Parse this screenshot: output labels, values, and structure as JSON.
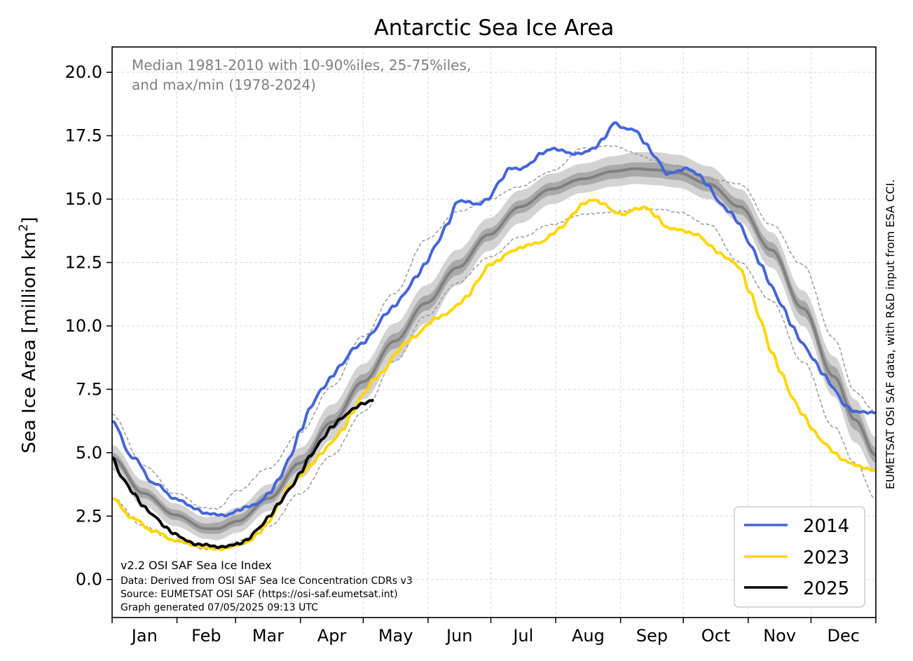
{
  "chart_data": {
    "type": "line",
    "title": "Antarctic Sea Ice Area",
    "ylabel_main": "Sea Ice Area [million km",
    "ylabel_sup": "2",
    "ylabel_close": "]",
    "xlabel": "",
    "xlim": [
      0,
      365
    ],
    "ylim": [
      -1.5,
      21.0
    ],
    "grid": true,
    "months": [
      "Jan",
      "Feb",
      "Mar",
      "Apr",
      "May",
      "Jun",
      "Jul",
      "Aug",
      "Sep",
      "Oct",
      "Nov",
      "Dec"
    ],
    "month_boundaries": [
      0,
      31,
      59,
      90,
      120,
      151,
      181,
      212,
      243,
      273,
      304,
      334,
      365
    ],
    "yticks": [
      0.0,
      2.5,
      5.0,
      7.5,
      10.0,
      12.5,
      15.0,
      17.5,
      20.0
    ],
    "ytick_labels": [
      "0.0",
      "2.5",
      "5.0",
      "7.5",
      "10.0",
      "12.5",
      "15.0",
      "17.5",
      "20.0"
    ],
    "climatology_note_line1": "Median 1981-2010 with 10-90%iles, 25-75%iles,",
    "climatology_note_line2": "and max/min (1978-2024)",
    "footer_lines": [
      "v2.2 OSI SAF Sea Ice Index",
      "Data: Derived from OSI SAF Sea Ice Concentration CDRs v3",
      "Source: EUMETSAT OSI SAF (https://osi-saf.eumetsat.int)",
      "Graph generated 07/05/2025 09:13 UTC"
    ],
    "side_credit": "EUMETSAT OSI SAF data, with R&D input from ESA CCI.",
    "legend_position": "lower-right",
    "legend": [
      {
        "label": "2014",
        "color": "#4466d8"
      },
      {
        "label": "2023",
        "color": "#ffd700"
      },
      {
        "label": "2025",
        "color": "#000000"
      }
    ],
    "climatology": {
      "x": [
        0,
        15,
        30,
        45,
        50,
        60,
        75,
        90,
        105,
        120,
        135,
        150,
        165,
        180,
        195,
        210,
        225,
        240,
        250,
        260,
        270,
        285,
        300,
        315,
        330,
        345,
        355,
        365
      ],
      "median": [
        4.8,
        3.4,
        2.55,
        2.0,
        2.0,
        2.3,
        3.2,
        4.6,
        6.2,
        7.8,
        9.4,
        10.9,
        12.3,
        13.6,
        14.7,
        15.4,
        15.8,
        16.1,
        16.2,
        16.15,
        16.05,
        15.6,
        14.7,
        13.0,
        10.7,
        8.0,
        6.3,
        4.9
      ],
      "p25": [
        4.6,
        3.2,
        2.35,
        1.8,
        1.8,
        2.1,
        3.0,
        4.3,
        5.9,
        7.5,
        9.1,
        10.6,
        12.0,
        13.35,
        14.45,
        15.15,
        15.55,
        15.8,
        15.9,
        15.85,
        15.75,
        15.3,
        14.4,
        12.7,
        10.4,
        7.6,
        5.9,
        4.6
      ],
      "p75": [
        5.0,
        3.6,
        2.75,
        2.2,
        2.25,
        2.55,
        3.45,
        4.9,
        6.5,
        8.1,
        9.7,
        11.2,
        12.6,
        13.85,
        14.95,
        15.65,
        16.05,
        16.35,
        16.45,
        16.45,
        16.35,
        15.9,
        15.0,
        13.3,
        11.0,
        8.4,
        6.7,
        5.2
      ],
      "p10": [
        4.3,
        2.9,
        2.1,
        1.6,
        1.55,
        1.85,
        2.7,
        4.0,
        5.5,
        7.1,
        8.6,
        10.1,
        11.6,
        12.95,
        14.05,
        14.8,
        15.25,
        15.5,
        15.6,
        15.55,
        15.45,
        15.0,
        14.1,
        12.3,
        10.0,
        7.2,
        5.4,
        4.2
      ],
      "p90": [
        5.3,
        3.9,
        3.0,
        2.45,
        2.5,
        2.85,
        3.75,
        5.2,
        6.9,
        8.5,
        10.1,
        11.6,
        13.0,
        14.25,
        15.35,
        16.0,
        16.4,
        16.7,
        16.85,
        16.85,
        16.75,
        16.3,
        15.4,
        13.7,
        11.4,
        8.8,
        7.1,
        5.6
      ],
      "max": [
        6.5,
        4.5,
        3.4,
        2.8,
        2.8,
        3.5,
        4.4,
        5.8,
        7.6,
        9.6,
        11.3,
        13.4,
        14.5,
        15.0,
        15.5,
        16.1,
        17.0,
        17.1,
        16.8,
        16.5,
        16.3,
        15.8,
        15.6,
        14.0,
        12.4,
        9.5,
        7.4,
        6.6
      ],
      "min": [
        3.2,
        2.1,
        1.5,
        1.2,
        1.2,
        1.5,
        2.1,
        3.4,
        4.9,
        6.6,
        8.6,
        10.4,
        11.7,
        12.7,
        13.5,
        14.0,
        14.4,
        14.5,
        14.6,
        14.6,
        14.5,
        14.0,
        12.5,
        11.0,
        8.6,
        6.0,
        4.6,
        3.2
      ]
    },
    "series": [
      {
        "name": "2014",
        "color": "#4466d8",
        "x": [
          0,
          10,
          20,
          30,
          40,
          45,
          50,
          55,
          60,
          65,
          70,
          75,
          80,
          85,
          90,
          95,
          100,
          105,
          110,
          115,
          120,
          125,
          130,
          135,
          140,
          145,
          150,
          155,
          160,
          165,
          170,
          175,
          180,
          185,
          190,
          195,
          200,
          205,
          210,
          215,
          220,
          225,
          230,
          235,
          240,
          245,
          250,
          255,
          260,
          265,
          270,
          275,
          280,
          285,
          290,
          295,
          300,
          305,
          310,
          315,
          320,
          325,
          330,
          335,
          340,
          345,
          350,
          355,
          360,
          365
        ],
        "y": [
          6.2,
          4.8,
          3.8,
          3.2,
          2.8,
          2.6,
          2.55,
          2.55,
          2.7,
          2.9,
          3.0,
          3.4,
          4.0,
          4.8,
          5.9,
          6.8,
          7.5,
          8.0,
          8.5,
          9.1,
          9.3,
          9.8,
          10.4,
          10.8,
          11.3,
          11.9,
          12.5,
          13.2,
          14.0,
          14.9,
          14.9,
          14.8,
          15.0,
          15.7,
          16.2,
          16.2,
          16.4,
          16.8,
          17.0,
          16.9,
          16.8,
          16.8,
          17.0,
          17.4,
          18.0,
          17.8,
          17.7,
          17.2,
          16.6,
          16.0,
          16.1,
          16.2,
          16.0,
          15.5,
          14.9,
          14.5,
          14.0,
          13.2,
          12.4,
          11.6,
          10.8,
          10.0,
          9.3,
          8.7,
          8.1,
          7.5,
          6.9,
          6.6,
          6.6,
          6.6
        ]
      },
      {
        "name": "2023",
        "color": "#ffd700",
        "x": [
          0,
          10,
          20,
          30,
          40,
          45,
          50,
          55,
          60,
          65,
          70,
          75,
          80,
          85,
          90,
          95,
          100,
          105,
          110,
          115,
          120,
          125,
          130,
          135,
          140,
          145,
          150,
          155,
          160,
          165,
          170,
          175,
          180,
          185,
          190,
          195,
          200,
          205,
          210,
          215,
          220,
          225,
          230,
          235,
          240,
          245,
          250,
          255,
          260,
          265,
          270,
          275,
          280,
          285,
          290,
          295,
          300,
          305,
          310,
          315,
          320,
          325,
          330,
          335,
          340,
          345,
          350,
          355,
          360,
          365
        ],
        "y": [
          3.2,
          2.4,
          1.9,
          1.55,
          1.35,
          1.25,
          1.2,
          1.25,
          1.35,
          1.5,
          1.8,
          2.3,
          3.0,
          3.7,
          4.1,
          4.5,
          5.0,
          5.4,
          5.9,
          6.6,
          7.3,
          7.9,
          8.2,
          8.9,
          9.3,
          9.6,
          10.0,
          10.3,
          10.5,
          10.8,
          11.2,
          11.8,
          12.4,
          12.6,
          12.9,
          13.1,
          13.2,
          13.3,
          13.6,
          13.9,
          14.4,
          14.8,
          15.0,
          14.8,
          14.5,
          14.4,
          14.6,
          14.7,
          14.3,
          13.9,
          13.8,
          13.7,
          13.6,
          13.2,
          12.9,
          12.6,
          12.3,
          11.3,
          10.2,
          9.0,
          8.1,
          7.2,
          6.5,
          5.9,
          5.4,
          5.0,
          4.7,
          4.5,
          4.4,
          4.3
        ]
      },
      {
        "name": "2025",
        "color": "#000000",
        "x": [
          0,
          5,
          10,
          15,
          20,
          25,
          30,
          35,
          40,
          45,
          50,
          55,
          60,
          65,
          70,
          75,
          80,
          85,
          90,
          95,
          100,
          105,
          110,
          115,
          120,
          125
        ],
        "y": [
          4.8,
          4.0,
          3.4,
          2.9,
          2.5,
          2.1,
          1.8,
          1.55,
          1.4,
          1.35,
          1.3,
          1.3,
          1.4,
          1.6,
          2.0,
          2.5,
          3.0,
          3.6,
          4.2,
          4.9,
          5.5,
          6.0,
          6.4,
          6.7,
          6.95,
          7.1
        ]
      }
    ]
  }
}
